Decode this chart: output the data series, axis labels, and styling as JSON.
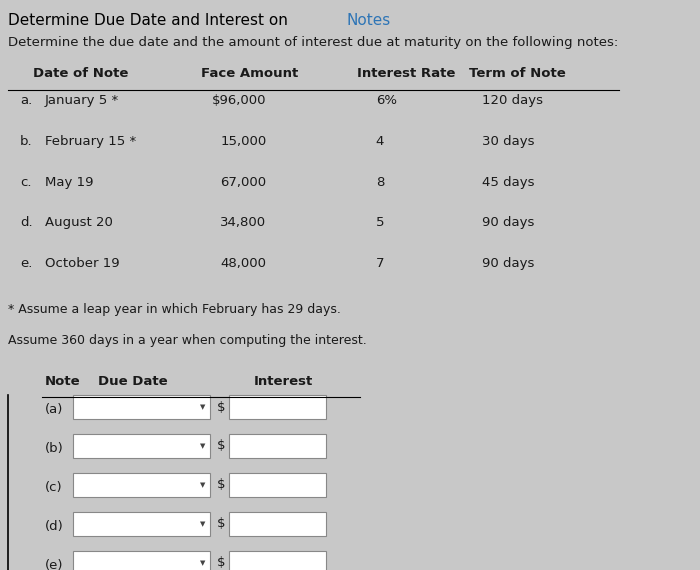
{
  "title_black": "Determine Due Date and Interest on ",
  "title_blue": "Notes",
  "title_color": "#2e75b6",
  "subtitle": "Determine the due date and the amount of interest due at maturity on the following notes:",
  "bg_color": "#c8c8c8",
  "table_headers": [
    "Date of Note",
    "Face Amount",
    "Interest Rate",
    "Term of Note"
  ],
  "table_rows": [
    [
      "a.",
      "January 5 *",
      "$96,000",
      "6%",
      "120 days"
    ],
    [
      "b.",
      "February 15 *",
      "15,000",
      "4",
      "30 days"
    ],
    [
      "c.",
      "May 19",
      "67,000",
      "8",
      "45 days"
    ],
    [
      "d.",
      "August 20",
      "34,800",
      "5",
      "90 days"
    ],
    [
      "e.",
      "October 19",
      "48,000",
      "7",
      "90 days"
    ]
  ],
  "footnote1": "* Assume a leap year in which February has 29 days.",
  "footnote2": "Assume 360 days in a year when computing the interest.",
  "answer_headers": [
    "Note",
    "Due Date",
    "Interest"
  ],
  "answer_rows": [
    "(a)",
    "(b)",
    "(c)",
    "(d)",
    "(e)"
  ],
  "font_color": "#1a1a1a",
  "header_font_size": 9.5,
  "row_font_size": 9.5
}
